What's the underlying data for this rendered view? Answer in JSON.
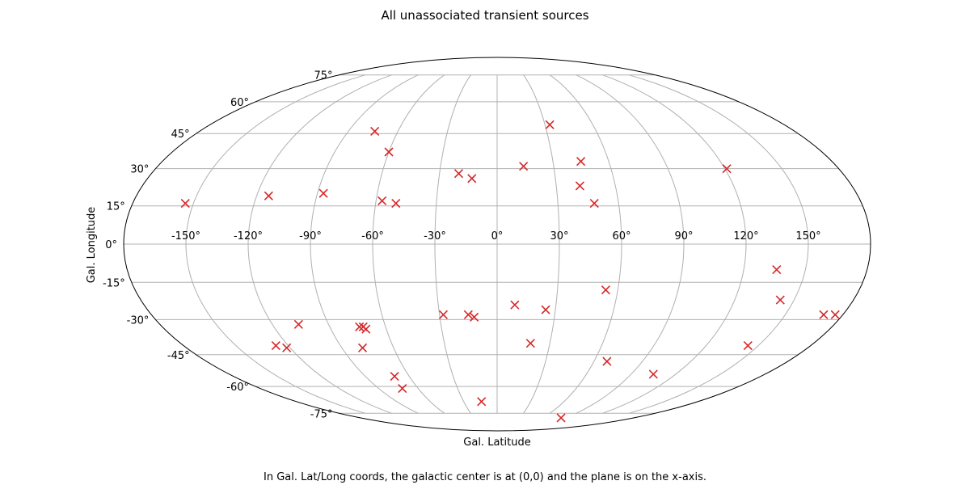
{
  "chart_data": {
    "type": "scatter",
    "projection": "mollweide",
    "title": "All unassociated transient sources",
    "xlabel": "Gal. Latitude",
    "ylabel": "Gal. Longitude",
    "caption": "In Gal. Lat/Long coords, the galactic center is at (0,0) and the plane is on the x-axis.",
    "grid": true,
    "xlim": [
      -180,
      180
    ],
    "ylim": [
      -90,
      90
    ],
    "x_ticks": [
      -150,
      -120,
      -90,
      -60,
      -30,
      0,
      30,
      60,
      90,
      120,
      150
    ],
    "x_tick_labels": [
      "-150°",
      "-120°",
      "-90°",
      "-60°",
      "-30°",
      "0°",
      "30°",
      "60°",
      "90°",
      "120°",
      "150°"
    ],
    "y_ticks": [
      -75,
      -60,
      -45,
      -30,
      -15,
      0,
      15,
      30,
      45,
      60,
      75
    ],
    "y_tick_labels": [
      "-75°",
      "-60°",
      "-45°",
      "-30°",
      "-15°",
      "0°",
      "15°",
      "30°",
      "45°",
      "60°",
      "75°"
    ],
    "marker": "x",
    "marker_color": "#d62728",
    "grid_color": "#b0b0b0",
    "points": [
      {
        "x": -154,
        "y": 16
      },
      {
        "x": -114,
        "y": 19
      },
      {
        "x": -87,
        "y": 20
      },
      {
        "x": -74,
        "y": 46
      },
      {
        "x": -60,
        "y": 37
      },
      {
        "x": -57,
        "y": 17
      },
      {
        "x": -50,
        "y": 16
      },
      {
        "x": -20,
        "y": 28
      },
      {
        "x": -13,
        "y": 26
      },
      {
        "x": 14,
        "y": 31
      },
      {
        "x": 33,
        "y": 49
      },
      {
        "x": 45,
        "y": 33
      },
      {
        "x": 42,
        "y": 23
      },
      {
        "x": 48,
        "y": 16
      },
      {
        "x": 121,
        "y": 30
      },
      {
        "x": 136,
        "y": -10
      },
      {
        "x": 54,
        "y": -18
      },
      {
        "x": 9,
        "y": -24
      },
      {
        "x": 25,
        "y": -26
      },
      {
        "x": -28,
        "y": -28
      },
      {
        "x": -15,
        "y": -28
      },
      {
        "x": -12,
        "y": -29
      },
      {
        "x": 143,
        "y": -22
      },
      {
        "x": 170,
        "y": -28
      },
      {
        "x": 176,
        "y": -28
      },
      {
        "x": -106,
        "y": -32
      },
      {
        "x": -74,
        "y": -33
      },
      {
        "x": -71,
        "y": -34
      },
      {
        "x": -72,
        "y": -33
      },
      {
        "x": -127,
        "y": -41
      },
      {
        "x": -122,
        "y": -42
      },
      {
        "x": -78,
        "y": -42
      },
      {
        "x": 19,
        "y": -40
      },
      {
        "x": 144,
        "y": -41
      },
      {
        "x": 68,
        "y": -48
      },
      {
        "x": 105,
        "y": -54
      },
      {
        "x": -70,
        "y": -55
      },
      {
        "x": -72,
        "y": -61
      },
      {
        "x": -14,
        "y": -68
      },
      {
        "x": 84,
        "y": -78
      }
    ]
  }
}
